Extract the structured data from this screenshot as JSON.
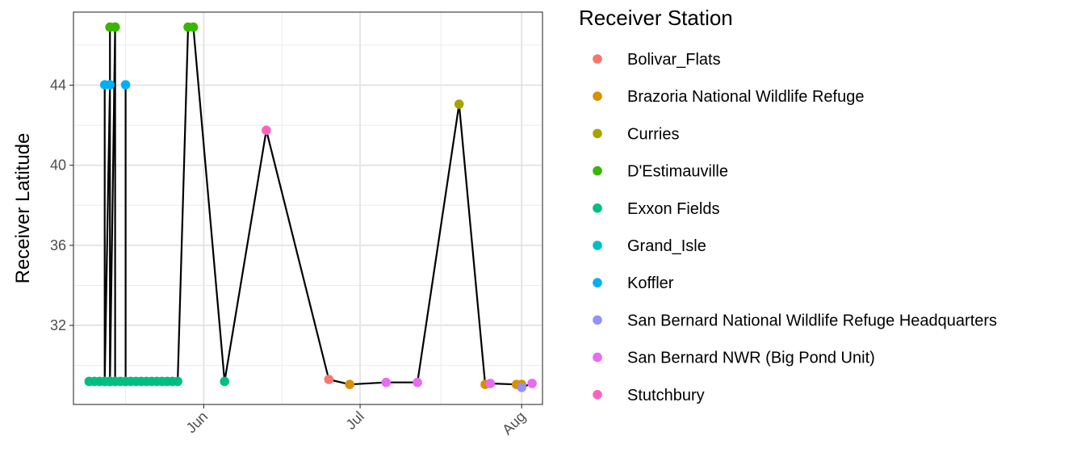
{
  "chart_data": {
    "type": "scatter",
    "title": "",
    "xlabel": "",
    "ylabel": "Receiver Latitude",
    "x_type": "date",
    "xlim": [
      "2023-05-07",
      "2023-08-05"
    ],
    "ylim": [
      28.05,
      47.65
    ],
    "x_ticks": [
      {
        "date": "2023-06-01",
        "label": "Jun"
      },
      {
        "date": "2023-07-01",
        "label": "Jul"
      },
      {
        "date": "2023-08-01",
        "label": "Aug"
      }
    ],
    "y_ticks": [
      32,
      36,
      40,
      44
    ],
    "grid": true,
    "connecting_line": true,
    "legend": {
      "title": "Receiver Station",
      "position": "right",
      "entries": [
        {
          "name": "Bolivar_Flats",
          "color": "#F8766D"
        },
        {
          "name": "Brazoria National Wildlife Refuge",
          "color": "#D89000"
        },
        {
          "name": "Curries",
          "color": "#A3A500"
        },
        {
          "name": "D'Estimauville",
          "color": "#39B600"
        },
        {
          "name": "Exxon Fields",
          "color": "#00BF7D"
        },
        {
          "name": "Grand_Isle",
          "color": "#00BFC4"
        },
        {
          "name": "Koffler",
          "color": "#00B0F6"
        },
        {
          "name": "San Bernard National Wildlife Refuge Headquarters",
          "color": "#9590FF"
        },
        {
          "name": "San Bernard NWR (Big Pond Unit)",
          "color": "#E76BF3"
        },
        {
          "name": "Stutchbury",
          "color": "#FF62BC"
        }
      ]
    },
    "points": [
      {
        "date": "2023-05-10",
        "lat": 29.2,
        "station": "Exxon Fields"
      },
      {
        "date": "2023-05-11",
        "lat": 29.2,
        "station": "Exxon Fields"
      },
      {
        "date": "2023-05-12",
        "lat": 29.2,
        "station": "Exxon Fields"
      },
      {
        "date": "2023-05-13",
        "lat": 29.2,
        "station": "Exxon Fields"
      },
      {
        "date": "2023-05-13",
        "lat": 44.02,
        "station": "Koffler"
      },
      {
        "date": "2023-05-13",
        "lat": 29.2,
        "station": "Exxon Fields"
      },
      {
        "date": "2023-05-14",
        "lat": 44.02,
        "station": "Koffler"
      },
      {
        "date": "2023-05-14",
        "lat": 29.2,
        "station": "Exxon Fields"
      },
      {
        "date": "2023-05-14",
        "lat": 44.02,
        "station": "Koffler"
      },
      {
        "date": "2023-05-14",
        "lat": 29.2,
        "station": "Exxon Fields"
      },
      {
        "date": "2023-05-14",
        "lat": 46.9,
        "station": "D'Estimauville"
      },
      {
        "date": "2023-05-14",
        "lat": 29.2,
        "station": "Exxon Fields"
      },
      {
        "date": "2023-05-15",
        "lat": 46.9,
        "station": "D'Estimauville"
      },
      {
        "date": "2023-05-15",
        "lat": 29.2,
        "station": "Exxon Fields"
      },
      {
        "date": "2023-05-15",
        "lat": 46.9,
        "station": "D'Estimauville"
      },
      {
        "date": "2023-05-15",
        "lat": 29.2,
        "station": "Exxon Fields"
      },
      {
        "date": "2023-05-16",
        "lat": 29.2,
        "station": "Exxon Fields"
      },
      {
        "date": "2023-05-17",
        "lat": 29.2,
        "station": "Exxon Fields"
      },
      {
        "date": "2023-05-17",
        "lat": 44.02,
        "station": "Koffler"
      },
      {
        "date": "2023-05-17",
        "lat": 29.2,
        "station": "Exxon Fields"
      },
      {
        "date": "2023-05-18",
        "lat": 29.2,
        "station": "Exxon Fields"
      },
      {
        "date": "2023-05-19",
        "lat": 29.2,
        "station": "Exxon Fields"
      },
      {
        "date": "2023-05-20",
        "lat": 29.2,
        "station": "Exxon Fields"
      },
      {
        "date": "2023-05-21",
        "lat": 29.2,
        "station": "Exxon Fields"
      },
      {
        "date": "2023-05-22",
        "lat": 29.2,
        "station": "Exxon Fields"
      },
      {
        "date": "2023-05-23",
        "lat": 29.2,
        "station": "Exxon Fields"
      },
      {
        "date": "2023-05-24",
        "lat": 29.2,
        "station": "Exxon Fields"
      },
      {
        "date": "2023-05-25",
        "lat": 29.2,
        "station": "Exxon Fields"
      },
      {
        "date": "2023-05-26",
        "lat": 29.2,
        "station": "Exxon Fields"
      },
      {
        "date": "2023-05-27",
        "lat": 29.2,
        "station": "Exxon Fields"
      },
      {
        "date": "2023-05-29",
        "lat": 46.9,
        "station": "D'Estimauville"
      },
      {
        "date": "2023-05-30",
        "lat": 46.9,
        "station": "D'Estimauville"
      },
      {
        "date": "2023-06-05",
        "lat": 29.2,
        "station": "Exxon Fields"
      },
      {
        "date": "2023-06-13",
        "lat": 41.75,
        "station": "Stutchbury"
      },
      {
        "date": "2023-06-25",
        "lat": 29.3,
        "station": "Bolivar_Flats"
      },
      {
        "date": "2023-06-29",
        "lat": 29.05,
        "station": "Brazoria National Wildlife Refuge"
      },
      {
        "date": "2023-07-06",
        "lat": 29.15,
        "station": "San Bernard NWR (Big Pond Unit)"
      },
      {
        "date": "2023-07-12",
        "lat": 29.15,
        "station": "San Bernard NWR (Big Pond Unit)"
      },
      {
        "date": "2023-07-20",
        "lat": 43.05,
        "station": "Curries"
      },
      {
        "date": "2023-07-25",
        "lat": 29.05,
        "station": "Brazoria National Wildlife Refuge"
      },
      {
        "date": "2023-07-26",
        "lat": 29.1,
        "station": "San Bernard NWR (Big Pond Unit)"
      },
      {
        "date": "2023-07-31",
        "lat": 29.05,
        "station": "Brazoria National Wildlife Refuge"
      },
      {
        "date": "2023-08-01",
        "lat": 29.05,
        "station": "Brazoria National Wildlife Refuge"
      },
      {
        "date": "2023-08-01",
        "lat": 28.9,
        "station": "San Bernard National Wildlife Refuge Headquarters"
      },
      {
        "date": "2023-08-03",
        "lat": 29.1,
        "station": "San Bernard NWR (Big Pond Unit)"
      }
    ]
  }
}
